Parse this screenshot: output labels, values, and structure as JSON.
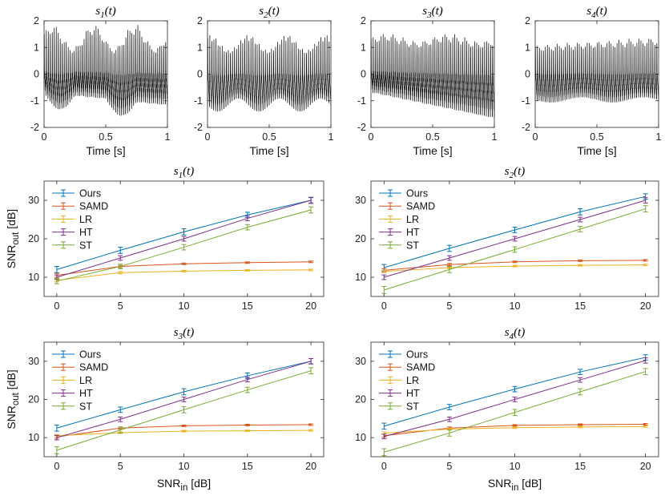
{
  "figure": {
    "sig_titles": [
      "s1(t)",
      "s2(t)",
      "s3(t)",
      "s4(t)"
    ],
    "snr_titles": [
      "s1(t)",
      "s2(t)",
      "s3(t)",
      "s4(t)"
    ],
    "time_xlabel": "Time [s]",
    "snr_xlabel": "SNR_in [dB]",
    "snr_ylabel": "SNR_out [dB]"
  },
  "colors": {
    "Ours": "#0072BD",
    "SAMD": "#D95319",
    "LR": "#EDB120",
    "HT": "#7E2F8E",
    "ST": "#77AC30",
    "signal": "#000000"
  },
  "chart_data": [
    {
      "type": "line",
      "title": "s1(t)",
      "xlabel": "Time [s]",
      "xlim": [
        0,
        1
      ],
      "ylim": [
        -2,
        2
      ],
      "xticks": [
        0,
        0.5,
        1
      ],
      "yticks": [
        -2,
        -1,
        0,
        1,
        2
      ],
      "signal": {
        "cycles": 62,
        "env_top": "~1.2–2.1 (oscillating ~3 Hz)",
        "env_bottom": "~-0.7 to -1.9"
      }
    },
    {
      "type": "line",
      "title": "s2(t)",
      "xlabel": "Time [s]",
      "xlim": [
        0,
        1
      ],
      "ylim": [
        -2,
        2
      ],
      "xticks": [
        0,
        0.5,
        1
      ],
      "yticks": [
        -2,
        -1,
        0,
        1,
        2
      ],
      "signal": {
        "cycles": 60,
        "env_top": "~1.2–1.7",
        "env_bottom": "~-1.1 to -1.5"
      }
    },
    {
      "type": "line",
      "title": "s3(t)",
      "xlabel": "Time [s]",
      "xlim": [
        0,
        1
      ],
      "ylim": [
        -2,
        2
      ],
      "xticks": [
        0,
        0.5,
        1
      ],
      "yticks": [
        -2,
        -1,
        0,
        1,
        2
      ],
      "signal": {
        "cycles": 62,
        "env_top": "~1.3–1.7",
        "env_bottom": "~-0.6 to -1.7"
      }
    },
    {
      "type": "line",
      "title": "s4(t)",
      "xlabel": "Time [s]",
      "xlim": [
        0,
        1
      ],
      "ylim": [
        -2,
        2
      ],
      "xticks": [
        0,
        0.5,
        1
      ],
      "yticks": [
        -2,
        -1,
        0,
        1,
        2
      ],
      "signal": {
        "cycles": 62,
        "env_top": "~1.1–1.5",
        "env_bottom": "~-0.9 to -1.1"
      }
    },
    {
      "type": "line",
      "title": "s1(t)",
      "xlabel": "",
      "ylabel": "SNR_out [dB]",
      "xlim": [
        -1,
        21
      ],
      "ylim": [
        5,
        35
      ],
      "xticks": [
        0,
        5,
        10,
        15,
        20
      ],
      "yticks": [
        10,
        20,
        30
      ],
      "legend": "top-left",
      "x": [
        0,
        5,
        10,
        15,
        20
      ],
      "series": [
        {
          "name": "Ours",
          "values": [
            12.0,
            17.0,
            21.8,
            26.2,
            30.0
          ],
          "err": [
            0.8,
            0.8,
            0.8,
            0.7,
            0.7
          ]
        },
        {
          "name": "SAMD",
          "values": [
            10.5,
            12.8,
            13.5,
            13.8,
            14.0
          ],
          "err": [
            0.5,
            0.3,
            0.2,
            0.2,
            0.2
          ]
        },
        {
          "name": "LR",
          "values": [
            9.2,
            11.2,
            11.6,
            11.8,
            11.9
          ],
          "err": [
            0.4,
            0.3,
            0.2,
            0.2,
            0.2
          ]
        },
        {
          "name": "HT",
          "values": [
            10.0,
            15.0,
            20.0,
            25.3,
            30.0
          ],
          "err": [
            0.6,
            0.6,
            0.6,
            0.6,
            0.8
          ]
        },
        {
          "name": "ST",
          "values": [
            9.0,
            12.8,
            17.8,
            23.0,
            27.5
          ],
          "err": [
            0.7,
            0.6,
            0.7,
            0.7,
            0.8
          ]
        }
      ]
    },
    {
      "type": "line",
      "title": "s2(t)",
      "xlabel": "",
      "ylabel": "",
      "xlim": [
        -1,
        21
      ],
      "ylim": [
        5,
        35
      ],
      "xticks": [
        0,
        5,
        10,
        15,
        20
      ],
      "yticks": [
        10,
        20,
        30
      ],
      "legend": "top-left",
      "x": [
        0,
        5,
        10,
        15,
        20
      ],
      "series": [
        {
          "name": "Ours",
          "values": [
            12.5,
            17.5,
            22.3,
            27.0,
            31.0
          ],
          "err": [
            0.8,
            0.8,
            0.7,
            0.8,
            0.7
          ]
        },
        {
          "name": "SAMD",
          "values": [
            11.8,
            13.3,
            14.0,
            14.3,
            14.4
          ],
          "err": [
            0.4,
            0.3,
            0.2,
            0.2,
            0.2
          ]
        },
        {
          "name": "LR",
          "values": [
            11.5,
            12.5,
            12.9,
            13.1,
            13.2
          ],
          "err": [
            0.3,
            0.2,
            0.2,
            0.2,
            0.2
          ]
        },
        {
          "name": "HT",
          "values": [
            10.0,
            15.0,
            20.0,
            25.0,
            30.0
          ],
          "err": [
            0.6,
            0.6,
            0.6,
            0.6,
            0.7
          ]
        },
        {
          "name": "ST",
          "values": [
            6.7,
            12.0,
            17.2,
            22.5,
            27.8
          ],
          "err": [
            0.9,
            0.8,
            0.7,
            0.7,
            0.8
          ]
        }
      ]
    },
    {
      "type": "line",
      "title": "s3(t)",
      "xlabel": "SNR_in [dB]",
      "ylabel": "SNR_out [dB]",
      "xlim": [
        -1,
        21
      ],
      "ylim": [
        5,
        35
      ],
      "xticks": [
        0,
        5,
        10,
        15,
        20
      ],
      "yticks": [
        10,
        20,
        30
      ],
      "legend": "top-left",
      "x": [
        0,
        5,
        10,
        15,
        20
      ],
      "series": [
        {
          "name": "Ours",
          "values": [
            12.5,
            17.3,
            22.0,
            26.2,
            30.0
          ],
          "err": [
            0.8,
            0.7,
            0.8,
            0.7,
            0.7
          ]
        },
        {
          "name": "SAMD",
          "values": [
            10.2,
            12.5,
            13.1,
            13.3,
            13.4
          ],
          "err": [
            0.4,
            0.3,
            0.2,
            0.2,
            0.2
          ]
        },
        {
          "name": "LR",
          "values": [
            10.5,
            11.3,
            11.7,
            11.8,
            11.9
          ],
          "err": [
            0.3,
            0.2,
            0.2,
            0.2,
            0.2
          ]
        },
        {
          "name": "HT",
          "values": [
            10.0,
            14.8,
            20.0,
            25.2,
            30.0
          ],
          "err": [
            0.6,
            0.6,
            0.6,
            0.6,
            0.7
          ]
        },
        {
          "name": "ST",
          "values": [
            6.7,
            12.0,
            17.3,
            22.5,
            27.5
          ],
          "err": [
            0.9,
            0.8,
            0.8,
            0.7,
            0.8
          ]
        }
      ]
    },
    {
      "type": "line",
      "title": "s4(t)",
      "xlabel": "SNR_in [dB]",
      "ylabel": "",
      "xlim": [
        -1,
        21
      ],
      "ylim": [
        5,
        35
      ],
      "xticks": [
        0,
        5,
        10,
        15,
        20
      ],
      "yticks": [
        10,
        20,
        30
      ],
      "legend": "top-left",
      "x": [
        0,
        5,
        10,
        15,
        20
      ],
      "series": [
        {
          "name": "Ours",
          "values": [
            13.0,
            18.0,
            22.7,
            27.2,
            31.0
          ],
          "err": [
            0.8,
            0.7,
            0.7,
            0.7,
            0.7
          ]
        },
        {
          "name": "SAMD",
          "values": [
            10.5,
            12.5,
            13.2,
            13.4,
            13.5
          ],
          "err": [
            0.4,
            0.3,
            0.2,
            0.2,
            0.2
          ]
        },
        {
          "name": "LR",
          "values": [
            11.2,
            12.2,
            12.6,
            12.8,
            12.9
          ],
          "err": [
            0.3,
            0.2,
            0.2,
            0.2,
            0.2
          ]
        },
        {
          "name": "HT",
          "values": [
            10.3,
            14.8,
            20.0,
            25.1,
            30.2
          ],
          "err": [
            0.6,
            0.6,
            0.6,
            0.6,
            0.7
          ]
        },
        {
          "name": "ST",
          "values": [
            6.2,
            11.2,
            16.6,
            22.0,
            27.3
          ],
          "err": [
            0.9,
            0.8,
            0.8,
            0.8,
            0.8
          ]
        }
      ]
    }
  ]
}
